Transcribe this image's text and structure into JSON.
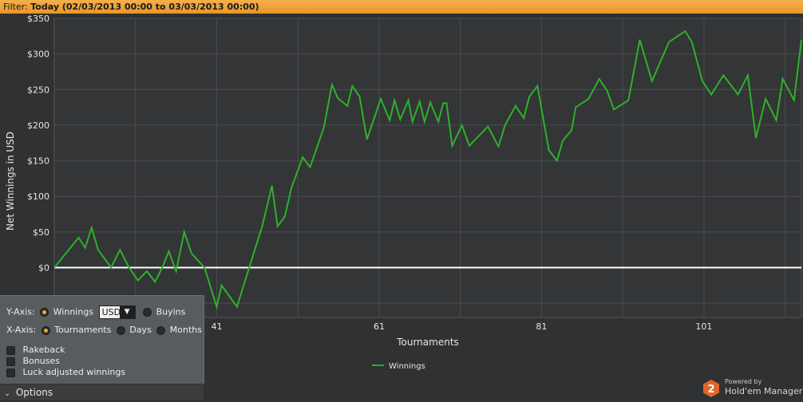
{
  "filter": {
    "label": "Filter:",
    "value": "Today (02/03/2013 00:00 to 03/03/2013 00:00)"
  },
  "chart_data": {
    "type": "line",
    "title": "",
    "xlabel": "Tournaments",
    "ylabel": "Net Winnings in USD",
    "xlim": [
      21,
      113
    ],
    "ylim": [
      -70,
      350
    ],
    "yticks": [
      -50,
      0,
      50,
      100,
      150,
      200,
      250,
      300,
      350
    ],
    "ytick_labels": [
      "$-50",
      "$0",
      "$50",
      "$100",
      "$150",
      "$200",
      "$250",
      "$300",
      "$350"
    ],
    "xticks": [
      41,
      61,
      81,
      101
    ],
    "grid": true,
    "legend_position": "bottom-center",
    "series": [
      {
        "name": "Winnings",
        "color": "#2db12a",
        "x": [
          21,
          24,
          24.8,
          25.6,
          26.4,
          28,
          29.1,
          30.2,
          31.3,
          32.4,
          33.4,
          34.3,
          35.1,
          36,
          37,
          37.9,
          39.5,
          41,
          41.6,
          43.5,
          45,
          46.6,
          47.8,
          48.5,
          49.4,
          50.2,
          51.6,
          52.5,
          54.2,
          55.2,
          55.9,
          57.1,
          57.7,
          58.6,
          59.5,
          61.2,
          62.3,
          62.9,
          63.6,
          64.6,
          65.1,
          66,
          66.6,
          67.3,
          68.3,
          68.9,
          69.3,
          70,
          71.2,
          72.1,
          74.4,
          75.7,
          76.5,
          77.8,
          78.8,
          79.5,
          80.5,
          81.9,
          82.9,
          83.6,
          84.7,
          85.2,
          86.8,
          88.1,
          89.1,
          89.9,
          91.7,
          93.1,
          94.6,
          96.7,
          98.7,
          99.5,
          100.8,
          101.9,
          103.4,
          105.2,
          106.4,
          107.4,
          108.6,
          109.9,
          110.7,
          112.1,
          113
        ],
        "y": [
          0,
          42,
          28,
          56,
          25,
          0,
          25,
          0,
          -18,
          -5,
          -20,
          0,
          23,
          -5,
          50,
          20,
          0,
          -55,
          -25,
          -55,
          0,
          58,
          115,
          58,
          72,
          112,
          155,
          141,
          197,
          257,
          238,
          227,
          255,
          240,
          180,
          237,
          207,
          235,
          208,
          235,
          205,
          233,
          205,
          232,
          205,
          231,
          231,
          171,
          200,
          171,
          198,
          170,
          200,
          227,
          210,
          240,
          255,
          165,
          150,
          178,
          193,
          225,
          237,
          265,
          248,
          222,
          235,
          320,
          262,
          317,
          332,
          317,
          262,
          243,
          270,
          243,
          270,
          182,
          237,
          207,
          265,
          235,
          320
        ]
      }
    ]
  },
  "options": {
    "y_axis_label": "Y-Axis:",
    "y_opt_winnings": "Winnings",
    "currency": "USD",
    "y_opt_buyins": "Buyins",
    "x_axis_label": "X-Axis:",
    "x_opt_tournaments": "Tournaments",
    "x_opt_days": "Days",
    "x_opt_months": "Months",
    "check_rakeback": "Rakeback",
    "check_bonuses": "Bonuses",
    "check_luck": "Luck adjusted winnings",
    "toggle_label": "Options"
  },
  "brand": {
    "powered_by": "Powered by",
    "name": "Hold'em Manager",
    "logo_digit": "2",
    "logo_color": "#e0662a"
  }
}
